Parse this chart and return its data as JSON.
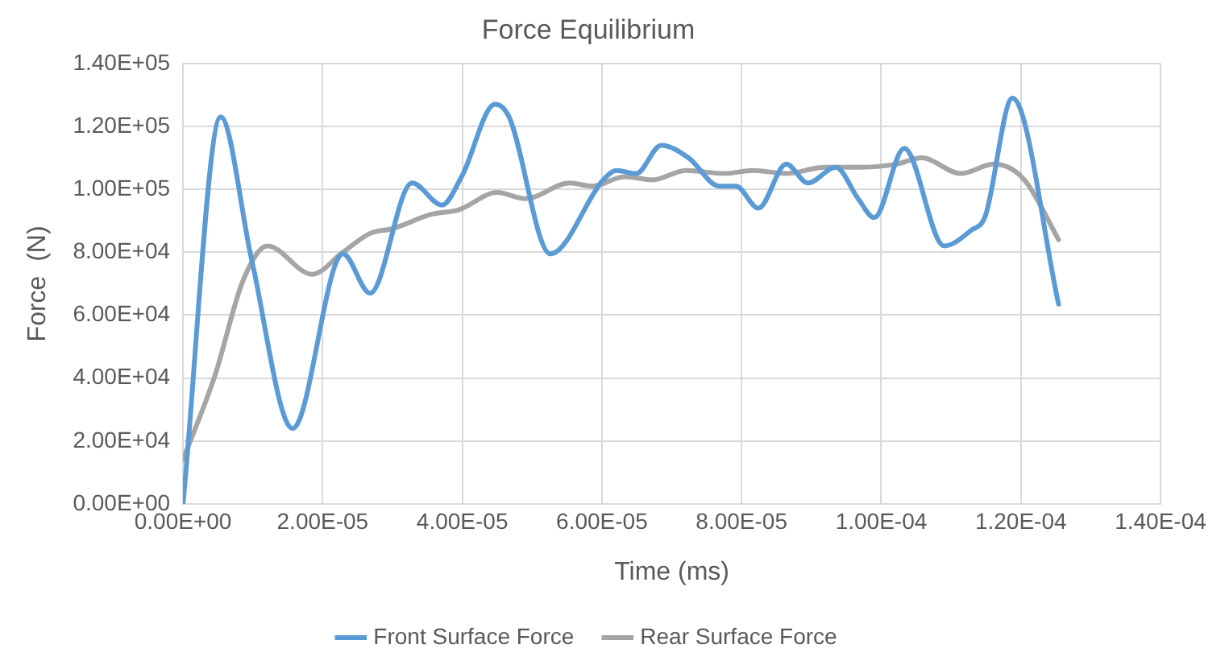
{
  "chart_data": {
    "type": "line",
    "title": "Force Equilibrium",
    "xlabel": "Time (ms)",
    "ylabel": "Force  (N)",
    "xlim": [
      0,
      0.00014
    ],
    "xticks": [
      {
        "value": 0,
        "label": "0.00E+00"
      },
      {
        "value": 2e-05,
        "label": "2.00E-05"
      },
      {
        "value": 4e-05,
        "label": "4.00E-05"
      },
      {
        "value": 6e-05,
        "label": "6.00E-05"
      },
      {
        "value": 8e-05,
        "label": "8.00E-05"
      },
      {
        "value": 0.0001,
        "label": "1.00E-04"
      },
      {
        "value": 0.00012,
        "label": "1.20E-04"
      },
      {
        "value": 0.00014,
        "label": "1.40E-04"
      }
    ],
    "ylim": [
      0,
      140000
    ],
    "yticks": [
      {
        "value": 0,
        "label": "0.00E+00"
      },
      {
        "value": 20000,
        "label": "2.00E+04"
      },
      {
        "value": 40000,
        "label": "4.00E+04"
      },
      {
        "value": 60000,
        "label": "6.00E+04"
      },
      {
        "value": 80000,
        "label": "8.00E+04"
      },
      {
        "value": 100000,
        "label": "1.00E+05"
      },
      {
        "value": 120000,
        "label": "1.20E+05"
      },
      {
        "value": 140000,
        "label": "1.40E+05"
      }
    ],
    "grid": true,
    "legend": "bottom",
    "marker": "none",
    "line_style": "solid",
    "series": [
      {
        "name": "Front Surface Force",
        "color": "#5b9bd5",
        "x": [
          0,
          5.4e-06,
          9.8e-06,
          1.57e-05,
          2.29e-05,
          2.68e-05,
          3.28e-05,
          3.71e-05,
          3.99e-05,
          4.47e-05,
          4.67e-05,
          5.26e-05,
          6.02e-05,
          6.21e-05,
          6.49e-05,
          6.85e-05,
          7.24e-05,
          7.68e-05,
          7.92e-05,
          8.24e-05,
          8.64e-05,
          8.95e-05,
          9.35e-05,
          9.67e-05,
          9.9e-05,
          0.0001033,
          0.000109,
          0.0001129,
          0.0001149,
          0.0001188,
          0.0001254
        ],
        "values": [
          0,
          123000,
          78000,
          24000,
          79500,
          67000,
          102000,
          95000,
          104000,
          127000,
          123000,
          79500,
          103000,
          106000,
          105000,
          114000,
          110000,
          101000,
          101000,
          94000,
          108000,
          102000,
          107000,
          97000,
          91000,
          113000,
          82000,
          87000,
          91500,
          129000,
          63500
        ]
      },
      {
        "name": "Rear Surface Force",
        "color": "#a5a5a5",
        "x": [
          0,
          4.6e-06,
          8.6e-06,
          1.21e-05,
          1.85e-05,
          2.29e-05,
          2.68e-05,
          3e-05,
          3.55e-05,
          3.95e-05,
          4.5e-05,
          4.9e-05,
          5.54e-05,
          5.86e-05,
          6.33e-05,
          6.73e-05,
          7.2e-05,
          7.76e-05,
          8.16e-05,
          8.64e-05,
          9.19e-05,
          9.67e-05,
          0.0001022,
          0.0001058,
          0.0001114,
          0.0001161,
          0.0001205,
          0.0001254
        ],
        "values": [
          14000,
          41000,
          71000,
          82000,
          73000,
          80000,
          86000,
          87500,
          92000,
          93500,
          99000,
          97000,
          102000,
          101000,
          104000,
          103000,
          106000,
          105000,
          106000,
          105000,
          107000,
          107000,
          108000,
          110000,
          105000,
          108000,
          103000,
          84000
        ]
      }
    ]
  }
}
